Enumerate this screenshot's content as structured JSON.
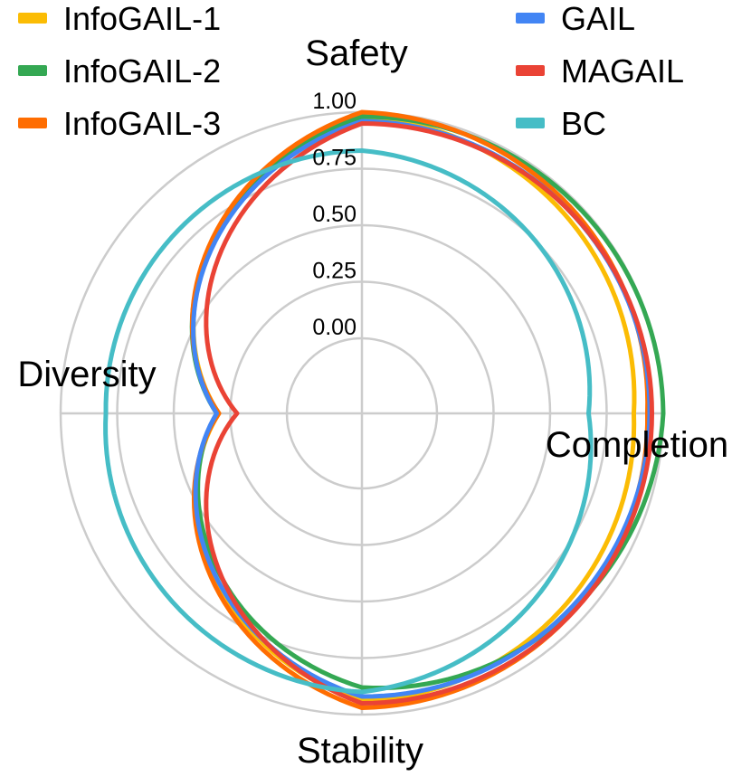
{
  "chart_data": {
    "type": "radar",
    "axes": [
      "Safety",
      "Completion",
      "Stability",
      "Diversity"
    ],
    "r_ticks": [
      "0.00",
      "0.25",
      "0.50",
      "0.75",
      "1.00"
    ],
    "r_range": [
      0,
      1
    ],
    "grid": true,
    "legend_position": "top",
    "series": [
      {
        "name": "InfoGAIL-1",
        "color": "#FBBC04",
        "values": [
          0.98,
          0.87,
          0.94,
          0.3
        ]
      },
      {
        "name": "InfoGAIL-2",
        "color": "#34A853",
        "values": [
          0.98,
          1.0,
          0.88,
          0.31
        ]
      },
      {
        "name": "InfoGAIL-3",
        "color": "#FF6D01",
        "values": [
          1.0,
          0.93,
          0.97,
          0.3
        ]
      },
      {
        "name": "GAIL",
        "color": "#4285F4",
        "values": [
          0.96,
          0.94,
          0.92,
          0.31
        ]
      },
      {
        "name": "MAGAIL",
        "color": "#EA4335",
        "values": [
          0.95,
          0.95,
          0.95,
          0.22
        ]
      },
      {
        "name": "BC",
        "color": "#46BDC6",
        "values": [
          0.83,
          0.67,
          0.9,
          0.8
        ]
      }
    ]
  }
}
